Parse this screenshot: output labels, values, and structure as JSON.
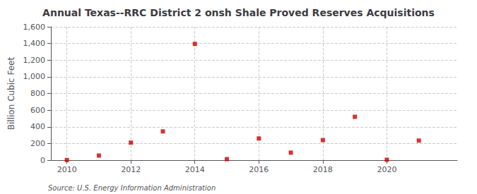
{
  "chart_data": {
    "type": "scatter",
    "title": "Annual Texas--RRC District 2 onsh Shale Proved Reserves Acquisitions",
    "ylabel": "Billion Cubic Feet",
    "source": "Source: U.S. Energy Information Administration",
    "x": [
      2010,
      2011,
      2012,
      2013,
      2014,
      2015,
      2016,
      2017,
      2018,
      2019,
      2020,
      2021
    ],
    "values": [
      2,
      55,
      210,
      345,
      1395,
      12,
      260,
      90,
      240,
      520,
      5,
      235
    ],
    "color": "#cc0000",
    "marker": "square",
    "xlim": [
      2009.5,
      2022.2
    ],
    "ylim": [
      0,
      1600
    ],
    "xticks": [
      2010,
      2012,
      2014,
      2016,
      2018,
      2020
    ],
    "yticks": [
      0,
      200,
      400,
      600,
      800,
      {
        "value": 1000,
        "label": "1,000"
      },
      {
        "value": 1200,
        "label": "1,200"
      },
      {
        "value": 1400,
        "label": "1,400"
      },
      {
        "value": 1600,
        "label": "1,600"
      }
    ],
    "grid": true
  }
}
